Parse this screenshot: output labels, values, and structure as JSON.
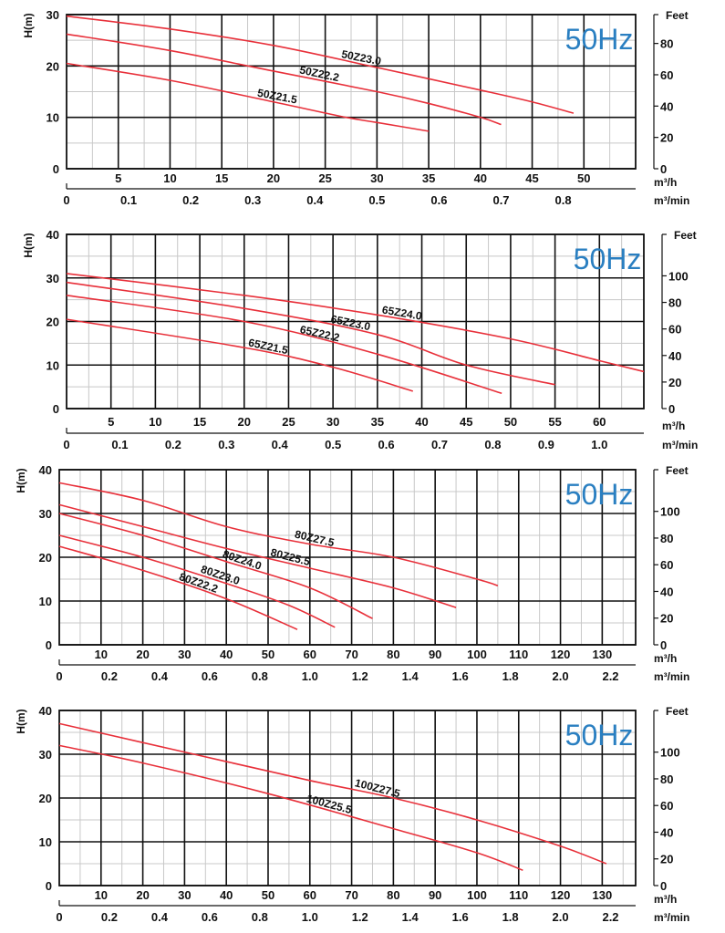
{
  "chart_data": [
    {
      "type": "line",
      "title": "50Hz",
      "ylabel": "H(m)",
      "y2label": "Feet",
      "xlabel": "m³/h",
      "x2label": "m³/min",
      "xlim": [
        0,
        55
      ],
      "ylim": [
        0,
        30
      ],
      "x_ticks": [
        5,
        10,
        15,
        20,
        25,
        30,
        35,
        40,
        45,
        50
      ],
      "x2_ticks": [
        "0",
        "0.1",
        "0.2",
        "0.3",
        "0.4",
        "0.5",
        "0.6",
        "0.7",
        "0.8"
      ],
      "y_ticks": [
        0,
        10,
        20,
        30
      ],
      "y2_ticks": [
        0,
        20,
        40,
        60,
        80
      ],
      "grid": true,
      "series": [
        {
          "name": "50Z23.0",
          "points": [
            [
              0,
              29.7
            ],
            [
              10,
              27.2
            ],
            [
              20,
              24
            ],
            [
              30,
              19.7
            ],
            [
              40,
              15.3
            ],
            [
              45,
              13
            ],
            [
              49,
              10.8
            ]
          ]
        },
        {
          "name": "50Z22.2",
          "points": [
            [
              0,
              26.2
            ],
            [
              10,
              23
            ],
            [
              20,
              19
            ],
            [
              30,
              15
            ],
            [
              35,
              12.7
            ],
            [
              40,
              10
            ],
            [
              42,
              8.6
            ]
          ]
        },
        {
          "name": "50Z21.5",
          "points": [
            [
              0,
              20.5
            ],
            [
              10,
              17.2
            ],
            [
              20,
              13
            ],
            [
              27,
              10
            ],
            [
              30,
              9
            ],
            [
              35,
              7.3
            ]
          ]
        }
      ]
    },
    {
      "type": "line",
      "title": "50Hz",
      "ylabel": "H(m)",
      "y2label": "Feet",
      "xlabel": "m³/h",
      "x2label": "m³/min",
      "xlim": [
        0,
        65
      ],
      "ylim": [
        0,
        40
      ],
      "x_ticks": [
        5,
        10,
        15,
        20,
        25,
        30,
        35,
        40,
        45,
        50,
        55,
        60
      ],
      "x2_ticks": [
        "0",
        "0.1",
        "0.2",
        "0.3",
        "0.4",
        "0.5",
        "0.6",
        "0.7",
        "0.8",
        "0.9",
        "1.0"
      ],
      "y_ticks": [
        0,
        10,
        20,
        30,
        40
      ],
      "y2_ticks": [
        0,
        20,
        40,
        60,
        80,
        100
      ],
      "grid": true,
      "series": [
        {
          "name": "65Z24.0",
          "points": [
            [
              0,
              31
            ],
            [
              20,
              26
            ],
            [
              35,
              21.5
            ],
            [
              50,
              16
            ],
            [
              60,
              11
            ],
            [
              65,
              8.5
            ]
          ]
        },
        {
          "name": "65Z23.0",
          "points": [
            [
              0,
              29
            ],
            [
              20,
              23
            ],
            [
              35,
              17
            ],
            [
              45,
              10
            ],
            [
              55,
              5.5
            ]
          ]
        },
        {
          "name": "65Z22.2",
          "points": [
            [
              0,
              26
            ],
            [
              20,
              20
            ],
            [
              35,
              12.5
            ],
            [
              49,
              3.5
            ]
          ]
        },
        {
          "name": "65Z21.5",
          "points": [
            [
              0,
              20.5
            ],
            [
              20,
              14
            ],
            [
              30,
              9.5
            ],
            [
              39,
              4
            ]
          ]
        }
      ]
    },
    {
      "type": "line",
      "title": "50Hz",
      "ylabel": "H(m)",
      "y2label": "Feet",
      "xlabel": "m³/h",
      "x2label": "m³/min",
      "xlim": [
        0,
        138
      ],
      "ylim": [
        0,
        40
      ],
      "x_ticks": [
        10,
        20,
        30,
        40,
        50,
        60,
        70,
        80,
        90,
        100,
        110,
        120,
        130
      ],
      "x2_ticks": [
        "0",
        "0.2",
        "0.4",
        "0.6",
        "0.8",
        "1.0",
        "1.2",
        "1.4",
        "1.6",
        "1.8",
        "2.0",
        "2.2"
      ],
      "y_ticks": [
        0,
        10,
        20,
        30,
        40
      ],
      "y2_ticks": [
        0,
        20,
        40,
        60,
        80,
        100
      ],
      "grid": true,
      "series": [
        {
          "name": "80Z27.5",
          "points": [
            [
              0,
              37
            ],
            [
              20,
              33
            ],
            [
              40,
              27
            ],
            [
              60,
              23
            ],
            [
              80,
              20
            ],
            [
              100,
              15
            ],
            [
              105,
              13.5
            ]
          ]
        },
        {
          "name": "80Z25.5",
          "points": [
            [
              0,
              32
            ],
            [
              20,
              27
            ],
            [
              40,
              22
            ],
            [
              60,
              17.5
            ],
            [
              80,
              13
            ],
            [
              95,
              8.5
            ]
          ]
        },
        {
          "name": "80Z24.0",
          "points": [
            [
              0,
              30
            ],
            [
              20,
              25
            ],
            [
              40,
              19
            ],
            [
              60,
              13
            ],
            [
              75,
              6
            ]
          ]
        },
        {
          "name": "80Z23.0",
          "points": [
            [
              0,
              25
            ],
            [
              20,
              20
            ],
            [
              40,
              14
            ],
            [
              55,
              9
            ],
            [
              66,
              4
            ]
          ]
        },
        {
          "name": "80Z22.2",
          "points": [
            [
              0,
              22.5
            ],
            [
              20,
              17
            ],
            [
              40,
              10.5
            ],
            [
              57,
              3.5
            ]
          ]
        }
      ]
    },
    {
      "type": "line",
      "title": "50Hz",
      "ylabel": "H(m)",
      "y2label": "Feet",
      "xlabel": "m³/h",
      "x2label": "m³/min",
      "xlim": [
        0,
        138
      ],
      "ylim": [
        0,
        40
      ],
      "x_ticks": [
        10,
        20,
        30,
        40,
        50,
        60,
        70,
        80,
        90,
        100,
        110,
        120,
        130
      ],
      "x2_ticks": [
        "0",
        "0.2",
        "0.4",
        "0.6",
        "0.8",
        "1.0",
        "1.2",
        "1.4",
        "1.6",
        "1.8",
        "2.0",
        "2.2"
      ],
      "y_ticks": [
        0,
        10,
        20,
        30,
        40
      ],
      "y2_ticks": [
        0,
        20,
        40,
        60,
        80,
        100
      ],
      "grid": true,
      "series": [
        {
          "name": "100Z27.5",
          "points": [
            [
              0,
              37
            ],
            [
              30,
              30.5
            ],
            [
              60,
              24
            ],
            [
              80,
              20
            ],
            [
              100,
              15
            ],
            [
              120,
              9
            ],
            [
              131,
              5
            ]
          ]
        },
        {
          "name": "100Z25.5",
          "points": [
            [
              0,
              32
            ],
            [
              20,
              28
            ],
            [
              50,
              21
            ],
            [
              80,
              13
            ],
            [
              100,
              7.5
            ],
            [
              111,
              3.5
            ]
          ]
        }
      ]
    }
  ],
  "colors": {
    "curve": "#e8303a",
    "hz": "#2a7fc1",
    "major_grid": "#111111",
    "minor_grid": "#c8c8c8"
  }
}
